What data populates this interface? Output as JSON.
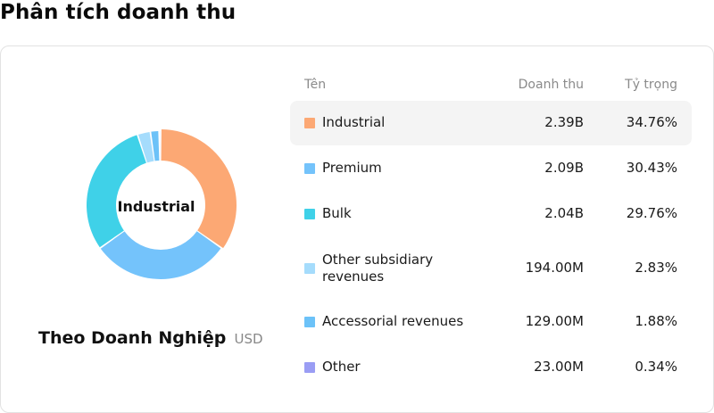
{
  "page": {
    "title": "Phân tích doanh thu"
  },
  "panel": {
    "selected_label": "Industrial",
    "subtitle": "Theo Doanh Nghiệp",
    "unit": "USD"
  },
  "table": {
    "headers": {
      "name": "Tên",
      "revenue": "Doanh thu",
      "share": "Tỷ trọng"
    },
    "rows": [
      {
        "name": "Industrial",
        "revenue": "2.39B",
        "share": "34.76%"
      },
      {
        "name": "Premium",
        "revenue": "2.09B",
        "share": "30.43%"
      },
      {
        "name": "Bulk",
        "revenue": "2.04B",
        "share": "29.76%"
      },
      {
        "name": "Other subsidiary revenues",
        "revenue": "194.00M",
        "share": "2.83%"
      },
      {
        "name": "Accessorial revenues",
        "revenue": "129.00M",
        "share": "1.88%"
      },
      {
        "name": "Other",
        "revenue": "23.00M",
        "share": "0.34%"
      }
    ]
  },
  "chart_data": {
    "type": "pie",
    "labels": [
      "Industrial",
      "Premium",
      "Bulk",
      "Other subsidiary revenues",
      "Accessorial revenues",
      "Other"
    ],
    "values": [
      34.76,
      30.43,
      29.76,
      2.83,
      1.88,
      0.34
    ],
    "colors": [
      "#fca874",
      "#74c3fb",
      "#3fd1e8",
      "#a5dcfc",
      "#6cc2f8",
      "#9a9df4"
    ],
    "highlighted": "Industrial"
  }
}
